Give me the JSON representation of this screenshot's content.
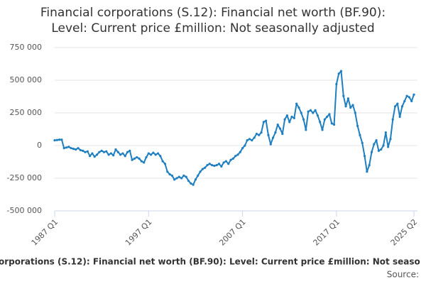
{
  "chart_data": {
    "type": "line",
    "title": [
      "Financial corporations (S.12): Financial net worth (BF.90):",
      "Level: Current price £million: Not seasonally adjusted"
    ],
    "caption": "orporations (S.12): Financial net worth (BF.90): Level: Current price £million: Not seaso",
    "source": "Source:",
    "color": "#1f7fc0",
    "grid": true,
    "ylim": [
      -500000,
      750000
    ],
    "yticks": [
      {
        "value": -500000,
        "label": "-500 000"
      },
      {
        "value": -250000,
        "label": "-250 000"
      },
      0,
      {
        "value": 250000,
        "label": "250 000"
      },
      {
        "value": 500000,
        "label": "500 000"
      },
      {
        "value": 750000,
        "label": "750 000"
      }
    ],
    "categories": [
      "1987 Q1",
      null,
      null,
      null,
      null,
      null,
      null,
      null,
      null,
      null,
      null,
      null,
      null,
      null,
      null,
      null,
      null,
      null,
      null,
      null,
      null,
      null,
      null,
      null,
      null,
      null,
      null,
      null,
      null,
      null,
      null,
      null,
      null,
      null,
      null,
      null,
      null,
      null,
      null,
      null,
      "1997 Q1",
      null,
      null,
      null,
      null,
      null,
      null,
      null,
      null,
      null,
      null,
      null,
      null,
      null,
      null,
      null,
      null,
      null,
      null,
      null,
      null,
      null,
      null,
      null,
      null,
      null,
      null,
      null,
      null,
      null,
      null,
      null,
      null,
      null,
      null,
      null,
      null,
      null,
      null,
      null,
      "2007 Q1",
      null,
      null,
      null,
      null,
      null,
      null,
      null,
      null,
      null,
      null,
      null,
      null,
      null,
      null,
      null,
      null,
      null,
      null,
      null,
      null,
      null,
      null,
      null,
      null,
      null,
      null,
      null,
      null,
      null,
      null,
      null,
      null,
      null,
      null,
      null,
      null,
      null,
      null,
      null,
      "2017 Q1",
      null,
      null,
      null,
      null,
      null,
      null,
      null,
      null,
      null,
      null,
      null,
      null,
      null,
      null,
      null,
      null,
      null,
      null,
      null,
      null,
      null,
      null,
      null,
      null,
      null,
      null,
      null,
      null,
      null,
      null,
      null,
      null,
      "2025 Q2"
    ],
    "values": [
      40000,
      42000,
      45000,
      45000,
      -20000,
      -15000,
      -10000,
      -20000,
      -25000,
      -30000,
      -20000,
      -35000,
      -40000,
      -50000,
      -45000,
      -80000,
      -60000,
      -85000,
      -70000,
      -50000,
      -40000,
      -50000,
      -45000,
      -70000,
      -60000,
      -75000,
      -30000,
      -50000,
      -70000,
      -60000,
      -80000,
      -50000,
      -40000,
      -110000,
      -100000,
      -90000,
      -100000,
      -120000,
      -130000,
      -90000,
      -60000,
      -70000,
      -55000,
      -70000,
      -60000,
      -80000,
      -120000,
      -140000,
      -200000,
      -220000,
      -230000,
      -260000,
      -250000,
      -240000,
      -250000,
      -230000,
      -240000,
      -270000,
      -290000,
      -300000,
      -260000,
      -230000,
      -200000,
      -180000,
      -170000,
      -150000,
      -140000,
      -150000,
      -155000,
      -150000,
      -140000,
      -160000,
      -130000,
      -120000,
      -140000,
      -110000,
      -100000,
      -80000,
      -70000,
      -50000,
      -20000,
      0,
      40000,
      50000,
      40000,
      60000,
      90000,
      80000,
      100000,
      180000,
      190000,
      80000,
      10000,
      60000,
      100000,
      160000,
      130000,
      90000,
      200000,
      230000,
      180000,
      220000,
      210000,
      320000,
      290000,
      250000,
      200000,
      120000,
      260000,
      270000,
      250000,
      270000,
      230000,
      180000,
      120000,
      200000,
      220000,
      240000,
      170000,
      160000,
      470000,
      550000,
      570000,
      380000,
      300000,
      360000,
      290000,
      310000,
      250000,
      150000,
      80000,
      20000,
      -80000,
      -200000,
      -150000,
      -50000,
      10000,
      40000,
      -40000,
      -30000,
      0,
      100000,
      -10000,
      50000,
      200000,
      300000,
      320000,
      220000,
      300000,
      340000,
      380000,
      370000,
      340000,
      390000
    ]
  }
}
